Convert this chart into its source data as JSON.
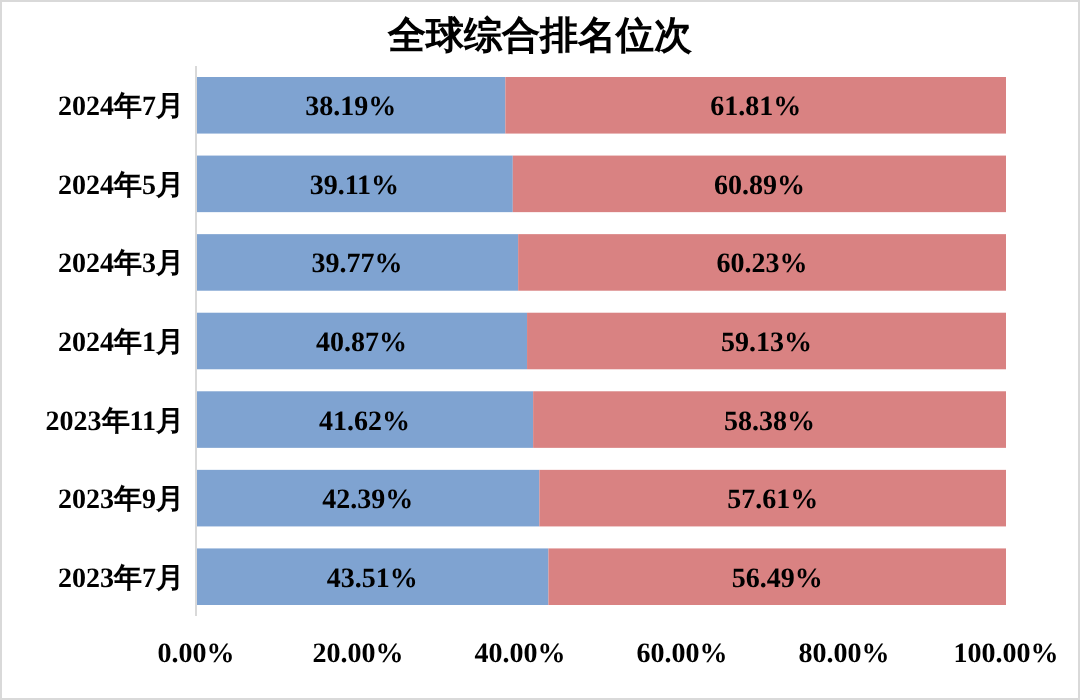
{
  "chart_data": {
    "type": "bar",
    "title": "全球综合排名位次",
    "orientation": "horizontal",
    "stacked": true,
    "categories": [
      "2024年7月",
      "2024年5月",
      "2024年3月",
      "2024年1月",
      "2023年11月",
      "2023年9月",
      "2023年7月"
    ],
    "series": [
      {
        "color": "#7fa3d1",
        "values": [
          38.19,
          39.11,
          39.77,
          40.87,
          41.62,
          42.39,
          43.51
        ],
        "value_labels": [
          "38.19%",
          "39.11%",
          "39.77%",
          "40.87%",
          "41.62%",
          "42.39%",
          "43.51%"
        ]
      },
      {
        "color": "#d98282",
        "values": [
          61.81,
          60.89,
          60.23,
          59.13,
          58.38,
          57.61,
          56.49
        ],
        "value_labels": [
          "61.81%",
          "60.89%",
          "60.23%",
          "59.13%",
          "58.38%",
          "57.61%",
          "56.49%"
        ]
      }
    ],
    "xlim": [
      0,
      100
    ],
    "xticks": [
      {
        "value": 0,
        "label": "0.00%"
      },
      {
        "value": 20,
        "label": "20.00%"
      },
      {
        "value": 40,
        "label": "40.00%"
      },
      {
        "value": 60,
        "label": "60.00%"
      },
      {
        "value": 80,
        "label": "80.00%"
      },
      {
        "value": 100,
        "label": "100.00%"
      }
    ]
  }
}
